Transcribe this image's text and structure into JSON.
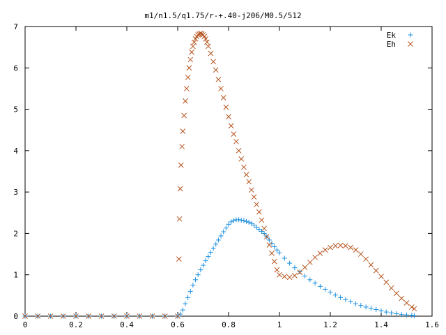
{
  "chart_data": {
    "type": "scatter",
    "title": "m1/n1.5/q1.75/r-+.40-j206/M0.5/512",
    "xlabel": "",
    "ylabel": "",
    "xlim": [
      0,
      1.6
    ],
    "ylim": [
      0,
      7
    ],
    "x_ticks": [
      "0",
      "0.2",
      "0.4",
      "0.6",
      "0.8",
      "1",
      "1.2",
      "1.4",
      "1.6"
    ],
    "y_ticks": [
      "0",
      "1",
      "2",
      "3",
      "4",
      "5",
      "6",
      "7"
    ],
    "grid": false,
    "legend_position": "top-right",
    "series": [
      {
        "name": "Ek",
        "marker": "plus",
        "color": "#1a8fe0",
        "points": [
          [
            0.0,
            0
          ],
          [
            0.05,
            0
          ],
          [
            0.1,
            0
          ],
          [
            0.15,
            0
          ],
          [
            0.2,
            0
          ],
          [
            0.25,
            0
          ],
          [
            0.3,
            0
          ],
          [
            0.35,
            0
          ],
          [
            0.4,
            0
          ],
          [
            0.45,
            0
          ],
          [
            0.5,
            0
          ],
          [
            0.55,
            0
          ],
          [
            0.6,
            0
          ],
          [
            0.61,
            0.05
          ],
          [
            0.62,
            0.15
          ],
          [
            0.63,
            0.3
          ],
          [
            0.64,
            0.45
          ],
          [
            0.65,
            0.6
          ],
          [
            0.66,
            0.75
          ],
          [
            0.67,
            0.88
          ],
          [
            0.68,
            1.0
          ],
          [
            0.69,
            1.12
          ],
          [
            0.7,
            1.23
          ],
          [
            0.71,
            1.34
          ],
          [
            0.72,
            1.44
          ],
          [
            0.73,
            1.54
          ],
          [
            0.74,
            1.64
          ],
          [
            0.75,
            1.74
          ],
          [
            0.76,
            1.84
          ],
          [
            0.77,
            1.94
          ],
          [
            0.78,
            2.04
          ],
          [
            0.79,
            2.13
          ],
          [
            0.8,
            2.22
          ],
          [
            0.81,
            2.28
          ],
          [
            0.82,
            2.31
          ],
          [
            0.83,
            2.33
          ],
          [
            0.84,
            2.33
          ],
          [
            0.85,
            2.32
          ],
          [
            0.86,
            2.31
          ],
          [
            0.87,
            2.29
          ],
          [
            0.88,
            2.27
          ],
          [
            0.89,
            2.24
          ],
          [
            0.9,
            2.2
          ],
          [
            0.91,
            2.15
          ],
          [
            0.92,
            2.1
          ],
          [
            0.93,
            2.05
          ],
          [
            0.94,
            2.0
          ],
          [
            0.95,
            1.92
          ],
          [
            0.96,
            1.84
          ],
          [
            0.97,
            1.76
          ],
          [
            0.98,
            1.68
          ],
          [
            0.99,
            1.6
          ],
          [
            1.0,
            1.53
          ],
          [
            1.02,
            1.4
          ],
          [
            1.04,
            1.28
          ],
          [
            1.06,
            1.17
          ],
          [
            1.08,
            1.07
          ],
          [
            1.1,
            0.97
          ],
          [
            1.12,
            0.88
          ],
          [
            1.14,
            0.8
          ],
          [
            1.16,
            0.72
          ],
          [
            1.18,
            0.65
          ],
          [
            1.2,
            0.58
          ],
          [
            1.22,
            0.51
          ],
          [
            1.24,
            0.45
          ],
          [
            1.26,
            0.4
          ],
          [
            1.28,
            0.35
          ],
          [
            1.3,
            0.3
          ],
          [
            1.32,
            0.26
          ],
          [
            1.34,
            0.22
          ],
          [
            1.36,
            0.19
          ],
          [
            1.38,
            0.16
          ],
          [
            1.4,
            0.13
          ],
          [
            1.42,
            0.1
          ],
          [
            1.44,
            0.08
          ],
          [
            1.46,
            0.06
          ],
          [
            1.48,
            0.04
          ],
          [
            1.5,
            0.03
          ],
          [
            1.52,
            0.02
          ],
          [
            1.53,
            0.01
          ]
        ]
      },
      {
        "name": "Eh",
        "marker": "cross",
        "color": "#b5541f",
        "points": [
          [
            0.0,
            0
          ],
          [
            0.05,
            0
          ],
          [
            0.1,
            0
          ],
          [
            0.15,
            0
          ],
          [
            0.2,
            0
          ],
          [
            0.25,
            0
          ],
          [
            0.3,
            0
          ],
          [
            0.35,
            0
          ],
          [
            0.4,
            0
          ],
          [
            0.45,
            0
          ],
          [
            0.5,
            0
          ],
          [
            0.55,
            0
          ],
          [
            0.6,
            0
          ],
          [
            0.605,
            1.38
          ],
          [
            0.607,
            2.35
          ],
          [
            0.61,
            3.08
          ],
          [
            0.613,
            3.65
          ],
          [
            0.617,
            4.1
          ],
          [
            0.62,
            4.47
          ],
          [
            0.625,
            4.85
          ],
          [
            0.63,
            5.2
          ],
          [
            0.635,
            5.5
          ],
          [
            0.64,
            5.77
          ],
          [
            0.645,
            6.0
          ],
          [
            0.65,
            6.2
          ],
          [
            0.655,
            6.38
          ],
          [
            0.66,
            6.52
          ],
          [
            0.665,
            6.62
          ],
          [
            0.67,
            6.7
          ],
          [
            0.675,
            6.76
          ],
          [
            0.68,
            6.8
          ],
          [
            0.685,
            6.82
          ],
          [
            0.69,
            6.83
          ],
          [
            0.695,
            6.82
          ],
          [
            0.7,
            6.8
          ],
          [
            0.705,
            6.76
          ],
          [
            0.71,
            6.7
          ],
          [
            0.715,
            6.62
          ],
          [
            0.72,
            6.52
          ],
          [
            0.73,
            6.35
          ],
          [
            0.74,
            6.15
          ],
          [
            0.75,
            5.95
          ],
          [
            0.76,
            5.72
          ],
          [
            0.77,
            5.5
          ],
          [
            0.78,
            5.28
          ],
          [
            0.79,
            5.05
          ],
          [
            0.8,
            4.82
          ],
          [
            0.81,
            4.6
          ],
          [
            0.82,
            4.4
          ],
          [
            0.83,
            4.22
          ],
          [
            0.84,
            4.0
          ],
          [
            0.85,
            3.8
          ],
          [
            0.86,
            3.6
          ],
          [
            0.87,
            3.42
          ],
          [
            0.88,
            3.25
          ],
          [
            0.89,
            3.05
          ],
          [
            0.9,
            2.88
          ],
          [
            0.91,
            2.7
          ],
          [
            0.92,
            2.52
          ],
          [
            0.93,
            2.32
          ],
          [
            0.94,
            2.12
          ],
          [
            0.95,
            1.92
          ],
          [
            0.96,
            1.72
          ],
          [
            0.97,
            1.52
          ],
          [
            0.98,
            1.32
          ],
          [
            0.99,
            1.12
          ],
          [
            1.0,
            1.0
          ],
          [
            1.02,
            0.96
          ],
          [
            1.04,
            0.94
          ],
          [
            1.06,
            0.98
          ],
          [
            1.08,
            1.06
          ],
          [
            1.1,
            1.18
          ],
          [
            1.12,
            1.3
          ],
          [
            1.14,
            1.42
          ],
          [
            1.16,
            1.52
          ],
          [
            1.18,
            1.6
          ],
          [
            1.2,
            1.66
          ],
          [
            1.22,
            1.7
          ],
          [
            1.24,
            1.71
          ],
          [
            1.26,
            1.7
          ],
          [
            1.28,
            1.66
          ],
          [
            1.3,
            1.6
          ],
          [
            1.32,
            1.5
          ],
          [
            1.34,
            1.38
          ],
          [
            1.36,
            1.24
          ],
          [
            1.38,
            1.1
          ],
          [
            1.4,
            0.96
          ],
          [
            1.42,
            0.82
          ],
          [
            1.44,
            0.68
          ],
          [
            1.46,
            0.55
          ],
          [
            1.48,
            0.43
          ],
          [
            1.5,
            0.32
          ],
          [
            1.52,
            0.22
          ],
          [
            1.53,
            0.18
          ]
        ]
      }
    ]
  }
}
